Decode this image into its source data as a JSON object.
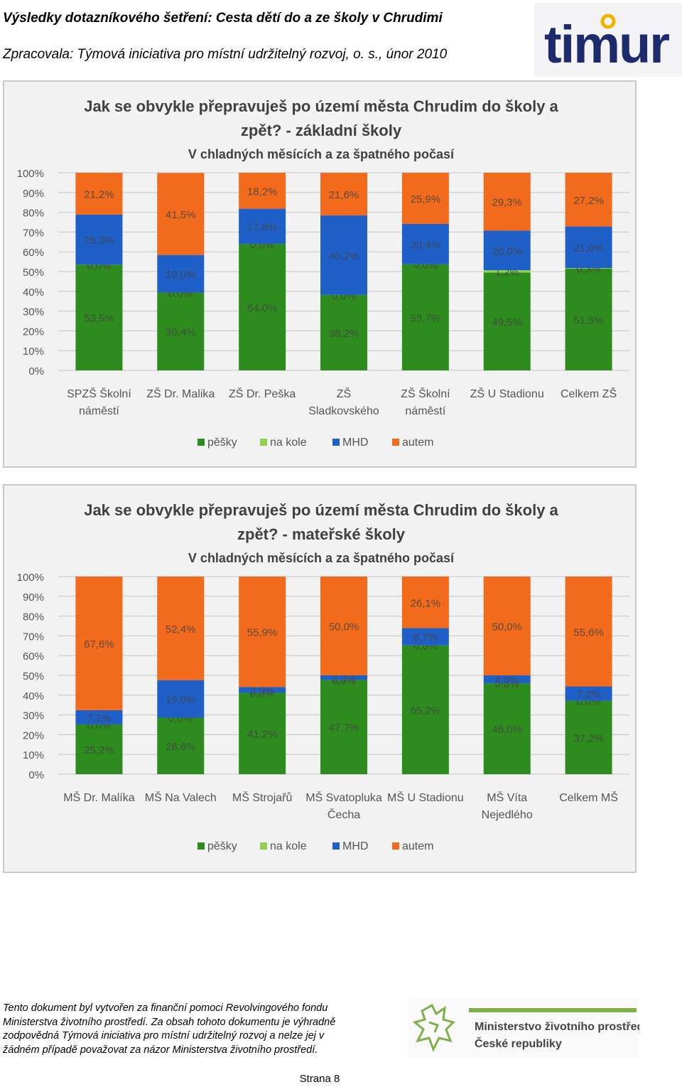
{
  "header": {
    "title": "Výsledky dotazníkového šetření: Cesta dětí do a ze školy v Chrudimi",
    "subtitle": "Zpracovala: Týmová iniciativa pro místní udržitelný rozvoj, o. s., únor 2010",
    "logo_text": "timur"
  },
  "chart_data": [
    {
      "type": "bar",
      "stacked": true,
      "title": "Jak se obvykle přepravuješ po území města Chrudim do školy a zpět? - základní školy",
      "subtitle": "V chladných měsících a za špatného počasí",
      "categories": [
        [
          "SPZŠ Školní",
          "náměstí"
        ],
        [
          "ZŠ Dr. Malika"
        ],
        [
          "ZŠ Dr. Peška"
        ],
        [
          "ZŠ",
          "Sladkovského"
        ],
        [
          "ZŠ Školní",
          "náměstí"
        ],
        [
          "ZŠ U Stadionu"
        ],
        [
          "Celkem ZŠ"
        ]
      ],
      "y_ticks": [
        "0%",
        "10%",
        "20%",
        "30%",
        "40%",
        "50%",
        "60%",
        "70%",
        "80%",
        "90%",
        "100%"
      ],
      "ylim": [
        0,
        100
      ],
      "grid": true,
      "legend_position": "bottom",
      "series": [
        {
          "name": "pěšky",
          "color": "#2e8b1e",
          "values": [
            53.5,
            39.4,
            64.0,
            38.2,
            53.7,
            49.5,
            51.5
          ],
          "labels": [
            "53,5%",
            "39,4%",
            "64,0%",
            "38,2%",
            "53,7%",
            "49,5%",
            "51,5%"
          ]
        },
        {
          "name": "na kole",
          "color": "#8fd14f",
          "values": [
            0.0,
            0.0,
            0.0,
            0.0,
            0.0,
            1.2,
            0.3
          ],
          "labels": [
            "0,0%",
            "0,0%",
            "0,0%",
            "0,0%",
            "0,0%",
            "1,2%",
            "0,3%"
          ]
        },
        {
          "name": "MHD",
          "color": "#1f5fc8",
          "values": [
            25.3,
            19.0,
            17.8,
            40.2,
            20.4,
            20.0,
            21.0
          ],
          "labels": [
            "25,3%",
            "19,0%",
            "17,8%",
            "40,2%",
            "20,4%",
            "20,0%",
            "21,0%"
          ]
        },
        {
          "name": "autem",
          "color": "#f26b1d",
          "values": [
            21.2,
            41.5,
            18.2,
            21.6,
            25.9,
            29.3,
            27.2
          ],
          "labels": [
            "21,2%",
            "41,5%",
            "18,2%",
            "21,6%",
            "25,9%",
            "29,3%",
            "27,2%"
          ]
        }
      ]
    },
    {
      "type": "bar",
      "stacked": true,
      "title": "Jak se obvykle přepravuješ po území města Chrudim do školy a zpět? - mateřské školy",
      "subtitle": "V chladných měsících a za špatného počasí",
      "categories": [
        [
          "MŠ Dr. Malíka"
        ],
        [
          "MŠ Na Valech"
        ],
        [
          "MŠ Strojařů"
        ],
        [
          "MŠ Svatopluka",
          "Čecha"
        ],
        [
          "MŠ U Stadionu"
        ],
        [
          "MŠ Víta",
          "Nejedlého"
        ],
        [
          "Celkem MŠ"
        ]
      ],
      "y_ticks": [
        "0%",
        "10%",
        "20%",
        "30%",
        "40%",
        "50%",
        "60%",
        "70%",
        "80%",
        "90%",
        "100%"
      ],
      "ylim": [
        0,
        100
      ],
      "grid": true,
      "legend_position": "bottom",
      "series": [
        {
          "name": "pěšky",
          "color": "#2e8b1e",
          "values": [
            25.2,
            28.6,
            41.2,
            47.7,
            65.2,
            46.0,
            37.2
          ],
          "labels": [
            "25,2%",
            "28,6%",
            "41,2%",
            "47,7%",
            "65,2%",
            "46,0%",
            "37,2%"
          ]
        },
        {
          "name": "na kole",
          "color": "#8fd14f",
          "values": [
            0.0,
            0.0,
            0.0,
            0.0,
            0.0,
            0.0,
            0.0
          ],
          "labels": [
            "0,0%",
            "0,0%",
            "0,0%",
            "0,0%",
            "0,0%",
            "0,0%",
            "0,0%"
          ]
        },
        {
          "name": "MHD",
          "color": "#1f5fc8",
          "values": [
            7.2,
            19.0,
            2.9,
            2.3,
            8.7,
            4.0,
            7.2
          ],
          "labels": [
            "7,2%",
            "19,0%",
            "2,9%",
            "2,3%",
            "8,7%",
            "4,0%",
            "7,2%"
          ]
        },
        {
          "name": "autem",
          "color": "#f26b1d",
          "values": [
            67.6,
            52.4,
            55.9,
            50.0,
            26.1,
            50.0,
            55.6
          ],
          "labels": [
            "67,6%",
            "52,4%",
            "55,9%",
            "50,0%",
            "26,1%",
            "50,0%",
            "55,6%"
          ]
        }
      ]
    }
  ],
  "footer": {
    "lines": [
      "Tento dokument byl vytvořen za finanční pomoci Revolvingového fondu",
      "Ministerstva životního prostředí. Za obsah tohoto dokumentu je výhradně",
      "zodpovědná Týmová iniciativa pro místní udržitelný rozvoj a nelze jej v",
      "žádném případě považovat za názor Ministerstva životního prostředí."
    ],
    "ministry_line1": "Ministerstvo životního prostředí",
    "ministry_line2": "České republiky",
    "page_number": "Strana 8"
  }
}
